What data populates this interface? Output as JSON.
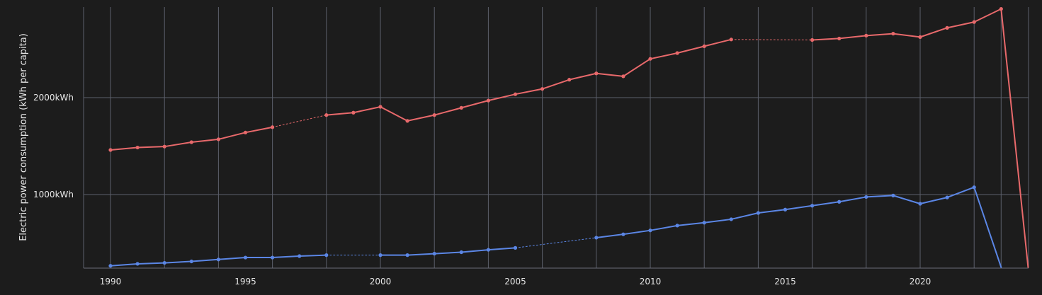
{
  "chart_data": {
    "type": "line",
    "title": "",
    "xlabel": "",
    "ylabel": "Electric power consumption (kWh per capita)",
    "x_ticks": [
      "1990",
      "1995",
      "2000",
      "2005",
      "2010",
      "2015",
      "2020"
    ],
    "y_ticks": [
      "1000kWh",
      "2000kWh"
    ],
    "xlim": [
      1989,
      2024
    ],
    "ylim": [
      250,
      2950
    ],
    "grid": true,
    "series": [
      {
        "color": "#e8696b",
        "x": [
          1990,
          1991,
          1992,
          1993,
          1994,
          1995,
          1996,
          1998,
          1999,
          2000,
          2001,
          2002,
          2003,
          2004,
          2005,
          2006,
          2007,
          2008,
          2009,
          2010,
          2011,
          2012,
          2013,
          2016,
          2017,
          2018,
          2019,
          2020,
          2021,
          2022,
          2023,
          2024
        ],
        "values": [
          1460,
          1485,
          1495,
          1540,
          1570,
          1640,
          1695,
          1820,
          1845,
          1905,
          1760,
          1820,
          1895,
          1970,
          2035,
          2090,
          2185,
          2250,
          2220,
          2400,
          2460,
          2530,
          2600,
          2595,
          2610,
          2640,
          2660,
          2625,
          2720,
          2780,
          2915,
          250
        ]
      },
      {
        "color": "#5b86e5",
        "x": [
          1990,
          1991,
          1992,
          1993,
          1994,
          1995,
          1996,
          1997,
          1998,
          2000,
          2001,
          2002,
          2003,
          2004,
          2005,
          2008,
          2009,
          2010,
          2011,
          2012,
          2013,
          2014,
          2015,
          2016,
          2017,
          2018,
          2019,
          2020,
          2021,
          2022,
          2023
        ],
        "values": [
          265,
          285,
          295,
          310,
          330,
          350,
          350,
          365,
          375,
          375,
          375,
          390,
          405,
          430,
          450,
          555,
          590,
          630,
          680,
          710,
          745,
          810,
          845,
          885,
          925,
          975,
          990,
          905,
          970,
          1075,
          250
        ]
      }
    ]
  }
}
